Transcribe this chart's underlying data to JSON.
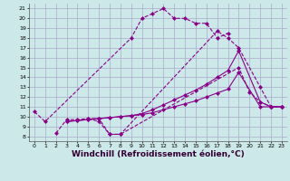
{
  "bg_color": "#cde8e8",
  "grid_color": "#aaaacc",
  "line_color": "#880088",
  "markersize": 2.5,
  "linewidth": 0.8,
  "xlabel": "Windchill (Refroidissement éolien,°C)",
  "xlabel_fontsize": 6.5,
  "xlim": [
    -0.5,
    23.5
  ],
  "ylim": [
    7.5,
    21.5
  ],
  "yticks": [
    8,
    9,
    10,
    11,
    12,
    13,
    14,
    15,
    16,
    17,
    18,
    19,
    20,
    21
  ],
  "xticks": [
    0,
    1,
    2,
    3,
    4,
    5,
    6,
    7,
    8,
    9,
    10,
    11,
    12,
    13,
    14,
    15,
    16,
    17,
    18,
    19,
    20,
    21,
    22,
    23
  ],
  "s1_x": [
    0,
    1,
    9,
    10,
    11,
    12,
    13,
    14,
    15,
    16,
    17,
    18
  ],
  "s1_y": [
    10.5,
    9.5,
    18.0,
    20.0,
    20.5,
    21.0,
    20.0,
    20.0,
    19.5,
    19.5,
    18.0,
    18.5
  ],
  "s1_style": "--",
  "s2_x": [
    5,
    6,
    7,
    8,
    17,
    18,
    19,
    21,
    22,
    23
  ],
  "s2_y": [
    9.8,
    9.5,
    8.2,
    8.2,
    18.7,
    18.0,
    17.0,
    13.0,
    11.0,
    11.0
  ],
  "s2_style": "--",
  "s3_x": [
    2,
    3,
    4,
    5,
    6,
    7,
    8,
    19,
    20,
    21,
    22,
    23
  ],
  "s3_y": [
    8.3,
    9.7,
    9.7,
    9.8,
    9.8,
    8.2,
    8.2,
    15.0,
    12.5,
    11.5,
    11.0,
    11.0
  ],
  "s3_style": "--",
  "s4_x": [
    3,
    4,
    5,
    6,
    7,
    8,
    9,
    10,
    11,
    12,
    13,
    14,
    15,
    16,
    17,
    18,
    19,
    21,
    22,
    23
  ],
  "s4_y": [
    9.5,
    9.6,
    9.7,
    9.8,
    9.9,
    10.0,
    10.1,
    10.3,
    10.7,
    11.2,
    11.7,
    12.2,
    12.7,
    13.3,
    14.0,
    14.7,
    16.7,
    11.5,
    11.0,
    11.0
  ],
  "s4_style": "-",
  "s5_x": [
    3,
    4,
    5,
    6,
    7,
    8,
    9,
    10,
    11,
    12,
    13,
    14,
    15,
    16,
    17,
    18,
    19,
    21,
    22,
    23
  ],
  "s5_y": [
    9.5,
    9.6,
    9.7,
    9.8,
    9.9,
    10.0,
    10.1,
    10.2,
    10.4,
    10.7,
    11.0,
    11.3,
    11.6,
    12.0,
    12.4,
    12.8,
    14.5,
    11.0,
    11.0,
    11.0
  ],
  "s5_style": "-"
}
